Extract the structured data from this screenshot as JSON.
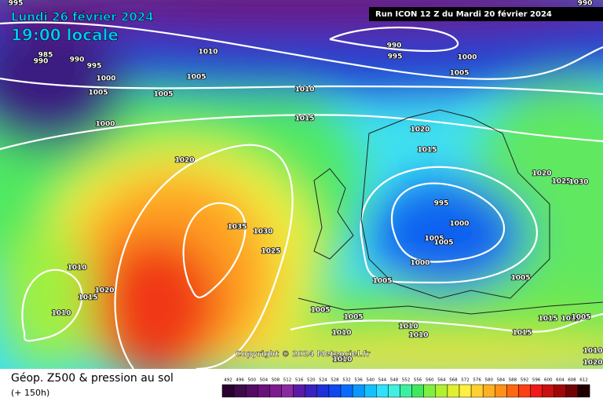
{
  "header": {
    "date": "Lundi 26 février 2024",
    "time": "19:00 locale",
    "run": "Run ICON 12 Z du Mardi 20 février 2024"
  },
  "copyright": "Copyright © 2024 Meteociel.fr",
  "footer": {
    "title": "Géop. Z500 & pression au sol",
    "lead": "(+ 150h)"
  },
  "isobar_labels": [
    995,
    990,
    985,
    990,
    990,
    995,
    1000,
    1005,
    1010,
    1005,
    1005,
    990,
    995,
    1000,
    1005,
    1010,
    1015,
    1000,
    1020,
    1020,
    1015,
    1020,
    1025,
    1030,
    995,
    1000,
    1005,
    1005,
    1000,
    1035,
    1030,
    1025,
    1010,
    1020,
    1015,
    1010,
    1005,
    1005,
    1005,
    1005,
    1010,
    1010,
    1010,
    1015,
    1015,
    1015,
    1005,
    1010,
    1010,
    1020
  ],
  "colorbar": {
    "labels": [
      492,
      496,
      500,
      504,
      508,
      512,
      516,
      520,
      524,
      528,
      532,
      536,
      540,
      544,
      548,
      552,
      556,
      560,
      564,
      568,
      572,
      576,
      580,
      584,
      588,
      592,
      596,
      600,
      604,
      608,
      612
    ],
    "colors": [
      "#2a0030",
      "#3d0a4a",
      "#520c62",
      "#6a107a",
      "#7e1a8e",
      "#8a2aa0",
      "#5a1aa8",
      "#3a20c0",
      "#2030d8",
      "#1048f0",
      "#0a6cff",
      "#0898ff",
      "#14c0ff",
      "#30e0ff",
      "#40f0e0",
      "#3cf0a0",
      "#40e860",
      "#80f040",
      "#b0f030",
      "#e0f030",
      "#fff040",
      "#ffd030",
      "#ffb020",
      "#ff9018",
      "#ff6810",
      "#ff4010",
      "#f01818",
      "#c81010",
      "#a00808",
      "#700404",
      "#200000"
    ]
  }
}
